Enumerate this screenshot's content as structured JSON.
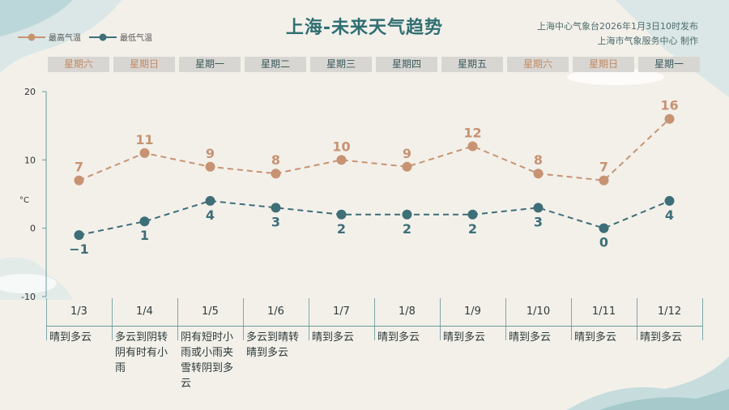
{
  "title": "上海-未来天气趋势",
  "publisher": {
    "line1": "上海中心气象台2026年1月3日10时发布",
    "line2": "上海市气象服务中心  制作"
  },
  "legend": {
    "high": "最高气温",
    "low": "最低气温"
  },
  "colors": {
    "high": "#c79373",
    "low": "#3e6e78",
    "title": "#2f6e72"
  },
  "chart_data": {
    "type": "line",
    "categories": [
      "1/3",
      "1/4",
      "1/5",
      "1/6",
      "1/7",
      "1/8",
      "1/9",
      "1/10",
      "1/11",
      "1/12"
    ],
    "weekdays": [
      "星期六",
      "星期日",
      "星期一",
      "星期二",
      "星期三",
      "星期四",
      "星期五",
      "星期六",
      "星期日",
      "星期一"
    ],
    "weekend": [
      true,
      true,
      false,
      false,
      false,
      false,
      false,
      true,
      true,
      false
    ],
    "series": [
      {
        "name": "最高气温",
        "values": [
          7,
          11,
          9,
          8,
          10,
          9,
          12,
          8,
          7,
          16
        ],
        "labels": [
          "7",
          "11",
          "9",
          "8",
          "10",
          "9",
          "12",
          "8",
          "7",
          "16"
        ]
      },
      {
        "name": "最低气温",
        "values": [
          -1,
          1,
          4,
          3,
          2,
          2,
          2,
          3,
          0,
          4
        ],
        "labels": [
          "−1",
          "1",
          "4",
          "3",
          "2",
          "2",
          "2",
          "3",
          "0",
          "4"
        ]
      }
    ],
    "ylabel": "°C",
    "ylim": [
      -10,
      20
    ],
    "yticks": [
      20,
      10,
      0,
      -10
    ],
    "descriptions": [
      "晴到多云",
      "多云到阴转阴有时有小雨",
      "阴有短时小雨或小雨夹雪转阴到多云",
      "多云到晴转晴到多云",
      "晴到多云",
      "晴到多云",
      "晴到多云",
      "晴到多云",
      "晴到多云",
      "晴到多云"
    ]
  }
}
